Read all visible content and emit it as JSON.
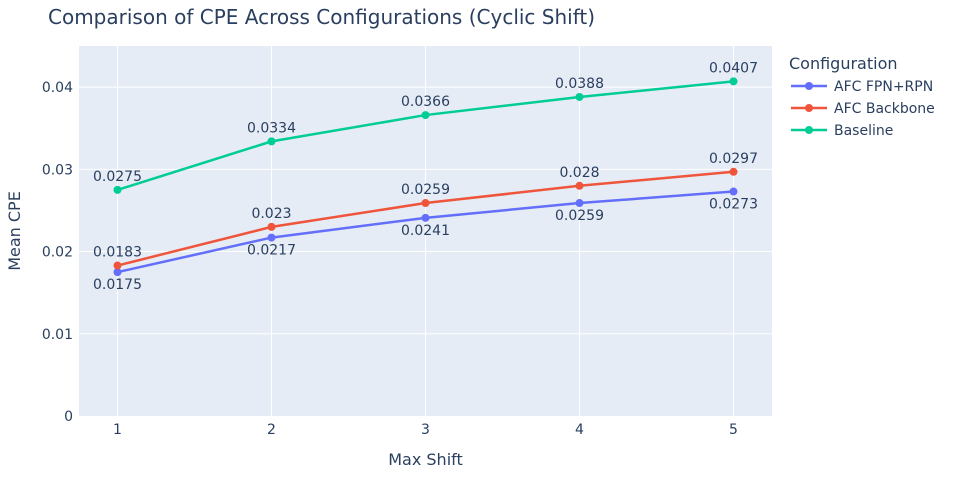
{
  "chart_data": {
    "type": "line",
    "title": "Comparison of CPE Across Configurations (Cyclic Shift)",
    "xlabel": "Max Shift",
    "ylabel": "Mean CPE",
    "x": [
      1,
      2,
      3,
      4,
      5
    ],
    "x_ticks": [
      "1",
      "2",
      "3",
      "4",
      "5"
    ],
    "xlim": [
      0.75,
      5.25
    ],
    "ylim": [
      0,
      0.045
    ],
    "y_ticks": [
      0,
      0.01,
      0.02,
      0.03,
      0.04
    ],
    "y_tick_labels": [
      "0",
      "0.01",
      "0.02",
      "0.03",
      "0.04"
    ],
    "grid": true,
    "legend": {
      "title": "Configuration",
      "position": "top-right, outside plot"
    },
    "colors": {
      "plot_bg": "#e5ecf6",
      "grid": "#ffffff",
      "text": "#2a3f5f"
    },
    "series": [
      {
        "name": "AFC FPN+RPN",
        "color": "#636efa",
        "values": [
          0.0175,
          0.0217,
          0.0241,
          0.0259,
          0.0273
        ],
        "labels": [
          "0.0175",
          "0.0217",
          "0.0241",
          "0.0259",
          "0.0273"
        ],
        "label_position": "below"
      },
      {
        "name": "AFC Backbone",
        "color": "#ef553b",
        "values": [
          0.0183,
          0.023,
          0.0259,
          0.028,
          0.0297
        ],
        "labels": [
          "0.0183",
          "0.023",
          "0.0259",
          "0.028",
          "0.0297"
        ],
        "label_position": "above"
      },
      {
        "name": "Baseline",
        "color": "#00cc96",
        "values": [
          0.0275,
          0.0334,
          0.0366,
          0.0388,
          0.0407
        ],
        "labels": [
          "0.0275",
          "0.0334",
          "0.0366",
          "0.0388",
          "0.0407"
        ],
        "label_position": "above"
      }
    ]
  }
}
